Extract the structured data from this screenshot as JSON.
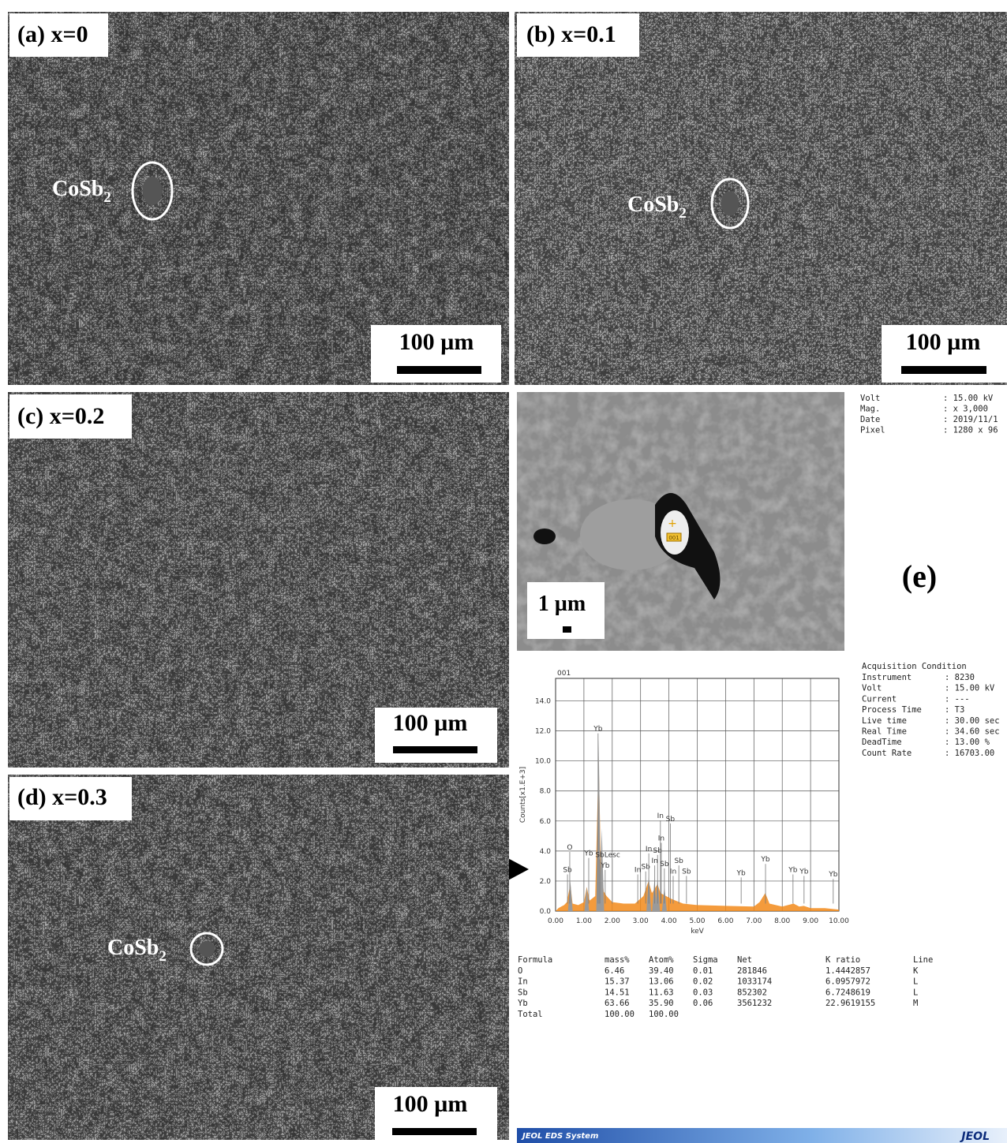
{
  "panels": [
    {
      "label": "(a) x=0",
      "annotation": {
        "text": "CoSb",
        "sub": "2"
      },
      "scale_bar": "100 µm"
    },
    {
      "label": "(b) x=0.1",
      "annotation": {
        "text": "CoSb",
        "sub": "2"
      },
      "scale_bar": "100 µm"
    },
    {
      "label": "(c) x=0.2",
      "scale_bar": "100 µm"
    },
    {
      "label": "(d) x=0.3",
      "annotation": {
        "text": "CoSb",
        "sub": "2"
      },
      "scale_bar": "100 µm"
    }
  ],
  "panel_e": {
    "label": "(e)",
    "image_scale_bar": "1 µm",
    "spot_label": "001",
    "image_info": [
      [
        "Volt",
        ": 15.00 kV"
      ],
      [
        "Mag.",
        ": x 3,000"
      ],
      [
        "Date",
        ": 2019/11/1"
      ],
      [
        "Pixel",
        ": 1280 x 96"
      ]
    ],
    "acquisition": {
      "title": "Acquisition Condition",
      "rows": [
        [
          "Instrument",
          ": 8230"
        ],
        [
          "Volt",
          ": 15.00 kV"
        ],
        [
          "Current",
          ": ---"
        ],
        [
          "Process Time",
          ": T3"
        ],
        [
          "Live time",
          ": 30.00 sec"
        ],
        [
          "Real Time",
          ": 34.60 sec"
        ],
        [
          "DeadTime",
          ": 13.00 %"
        ],
        [
          "Count Rate",
          ": 16703.00"
        ]
      ]
    },
    "spectrum": {
      "type": "area",
      "title": "001",
      "xlabel": "keV",
      "ylabel": "Counts[x1.E+3]",
      "color": "#f28a1a",
      "x": [
        0,
        0.1,
        0.2,
        0.3,
        0.4,
        0.52,
        0.6,
        0.8,
        1.0,
        1.1,
        1.2,
        1.4,
        1.52,
        1.6,
        1.7,
        1.8,
        2.0,
        2.4,
        2.8,
        3.1,
        3.28,
        3.4,
        3.6,
        3.7,
        3.9,
        4.1,
        4.5,
        5,
        6,
        7,
        7.2,
        7.4,
        7.55,
        8,
        8.4,
        8.6,
        8.76,
        9,
        9.5,
        10
      ],
      "values": [
        0,
        0.2,
        0.3,
        0.4,
        0.6,
        1.8,
        0.5,
        0.4,
        0.6,
        1.6,
        0.7,
        1.0,
        10.2,
        3.0,
        1.3,
        1.0,
        0.6,
        0.5,
        0.5,
        1.0,
        2.0,
        1.2,
        1.8,
        1.2,
        1.0,
        0.8,
        0.5,
        0.4,
        0.35,
        0.3,
        0.6,
        1.2,
        0.5,
        0.3,
        0.5,
        0.3,
        0.35,
        0.2,
        0.2,
        0.1
      ],
      "peaks": {
        "color": "#9a9a9a",
        "x": [
          0.52,
          1.1,
          1.52,
          1.63,
          3.29,
          3.49,
          3.6,
          3.84
        ],
        "values": [
          2.0,
          1.6,
          11.5,
          5.5,
          2.4,
          2.1,
          2.2,
          1.6
        ]
      },
      "markers": [
        {
          "label": "Sb",
          "x": 0.42,
          "y": 2.6
        },
        {
          "label": "O",
          "x": 0.5,
          "y": 4.1
        },
        {
          "label": "Yb",
          "x": 1.17,
          "y": 3.7
        },
        {
          "label": "Yb",
          "x": 1.5,
          "y": 12.0
        },
        {
          "label": "Sb",
          "x": 1.56,
          "y": 3.6
        },
        {
          "label": "Lesc",
          "x": 2.0,
          "y": 3.6
        },
        {
          "label": "Yb",
          "x": 1.75,
          "y": 2.9
        },
        {
          "label": "In",
          "x": 2.9,
          "y": 2.6
        },
        {
          "label": "Sb",
          "x": 3.18,
          "y": 2.8
        },
        {
          "label": "In",
          "x": 3.29,
          "y": 4.0
        },
        {
          "label": "Sb",
          "x": 3.6,
          "y": 3.9
        },
        {
          "label": "In",
          "x": 3.73,
          "y": 4.7
        },
        {
          "label": "In",
          "x": 3.5,
          "y": 3.2
        },
        {
          "label": "Sb",
          "x": 3.84,
          "y": 3.0
        },
        {
          "label": "In",
          "x": 4.15,
          "y": 2.5
        },
        {
          "label": "Sb",
          "x": 4.62,
          "y": 2.5
        },
        {
          "label": "Sb",
          "x": 4.35,
          "y": 3.2
        },
        {
          "label": "In",
          "x": 3.7,
          "y": 6.2
        },
        {
          "label": "Sb",
          "x": 4.05,
          "y": 6.0
        },
        {
          "label": "Yb",
          "x": 6.55,
          "y": 2.4
        },
        {
          "label": "Yb",
          "x": 7.41,
          "y": 3.3
        },
        {
          "label": "Yb",
          "x": 8.38,
          "y": 2.6
        },
        {
          "label": "Yb",
          "x": 8.77,
          "y": 2.5
        },
        {
          "label": "Yb",
          "x": 9.8,
          "y": 2.3
        }
      ],
      "xlim": [
        0,
        10
      ],
      "ylim": [
        0,
        15.5
      ],
      "grid": true,
      "xticks": [
        {
          "value": 0,
          "label": "0.00"
        },
        {
          "value": 1,
          "label": "1.00"
        },
        {
          "value": 2,
          "label": "2.00"
        },
        {
          "value": 3,
          "label": "3.00"
        },
        {
          "value": 4,
          "label": "4.00"
        },
        {
          "value": 5,
          "label": "5.00"
        },
        {
          "value": 6,
          "label": "6.00"
        },
        {
          "value": 7,
          "label": "7.00"
        },
        {
          "value": 8,
          "label": "8.00"
        },
        {
          "value": 9,
          "label": "9.00"
        },
        {
          "value": 10,
          "label": "10.00"
        }
      ],
      "yticks": [
        {
          "value": 0,
          "label": "0.0"
        },
        {
          "value": 2,
          "label": "2.0"
        },
        {
          "value": 4,
          "label": "4.0"
        },
        {
          "value": 6,
          "label": "6.0"
        },
        {
          "value": 8,
          "label": "8.0"
        },
        {
          "value": 10,
          "label": "10.0"
        },
        {
          "value": 12,
          "label": "12.0"
        },
        {
          "value": 14,
          "label": "14.0"
        }
      ]
    },
    "table": {
      "header": [
        "Formula",
        "mass%",
        "Atom%",
        "Sigma",
        "Net",
        "K ratio",
        "Line"
      ],
      "rows": [
        [
          "O",
          "6.46",
          "39.40",
          "0.01",
          "281846",
          "1.4442857",
          "K"
        ],
        [
          "In",
          "15.37",
          "13.06",
          "0.02",
          "1033174",
          "6.0957972",
          "L"
        ],
        [
          "Sb",
          "14.51",
          "11.63",
          "0.03",
          "852302",
          "6.7248619",
          "L"
        ],
        [
          "Yb",
          "63.66",
          "35.90",
          "0.06",
          "3561232",
          "22.9619155",
          "M"
        ],
        [
          "Total",
          "100.00",
          "100.00",
          "",
          "",
          "",
          ""
        ]
      ]
    },
    "footer": {
      "left": "JEOL EDS System",
      "right": "JEOL"
    }
  }
}
